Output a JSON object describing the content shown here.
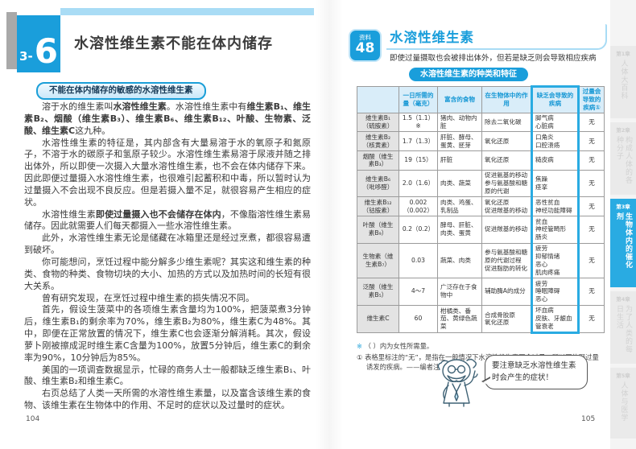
{
  "left_page": {
    "section_prefix": "3-",
    "section_number": "6",
    "title": "水溶性维生素不能在体内储存",
    "subtitle_bar": "不能在体内储存的敏感的水溶性维生素",
    "paragraphs": [
      [
        {
          "t": "溶于水的维生素叫",
          "b": false
        },
        {
          "t": "水溶性维生素",
          "b": true
        },
        {
          "t": "。水溶性维生素中有",
          "b": false
        },
        {
          "t": "维生素B₁、维生素B₂、烟酸（维生素B₃）、维生素B₆、维生素B₁₂、叶酸、生物素、泛酸、维生素C",
          "b": true
        },
        {
          "t": "这九种。",
          "b": false
        }
      ],
      [
        {
          "t": "水溶性维生素的特征是，其内部含有大量易溶于水的氧原子和氮原子，不溶于水的碳原子和氢原子较少。水溶性维生素易溶于尿液并随之排出体外，所以即使一次摄入大量水溶性维生素，也不会在体内储存下来。因此即便过量摄入水溶性维生素，也很难引起蓄积和中毒，所以暂时认为过量摄入不会出现不良反应。但是若摄入量不足，就很容易产生相应的症状。",
          "b": false
        }
      ],
      [
        {
          "t": "水溶性维生素",
          "b": false
        },
        {
          "t": "即使过量摄入也不会储存在体内",
          "b": true
        },
        {
          "t": "，不像脂溶性维生素易储存。因此就需要人们每天都摄入一些水溶性维生素。",
          "b": false
        }
      ],
      [
        {
          "t": "此外，水溶性维生素无论是储藏在冰箱里还是经过烹煮，都很容易遭到破坏。",
          "b": false
        }
      ],
      [
        {
          "t": "你可能想问，烹饪过程中能分解多少维生素呢？其实这和维生素的种类、食物的种类、食物切块的大小、加热的方式以及加热时间的长短有很大关系。",
          "b": false
        }
      ],
      [
        {
          "t": "曾有研究发现，在烹饪过程中维生素的损失情况不同。",
          "b": false
        }
      ],
      [
        {
          "t": "首先，假设生菠菜中的各项维生素含量均为100%，把菠菜煮3分钟后，维生素B₁的剩余率为70%，维生素B₂为80%，维生素C为48%。其中，即便在正常放置的情况下，维生素C也会逐渐分解消耗。其次，假设萝卜刚被擦成泥时维生素C含量为100%，放置5分钟后，维生素C的剩余率为90%，10分钟后为85%。",
          "b": false
        }
      ],
      [
        {
          "t": "美国的一项调查数据显示，忙碌的商务人士一般都缺乏维生素B₁、叶酸、维生素B₂和维生素C。",
          "b": false
        }
      ],
      [
        {
          "t": "右页总结了人类一天所需的水溶性维生素量，以及富含该维生素的食物、该维生素在生物体中的作用、不足时的症状以及过量时的症状。",
          "b": false
        }
      ]
    ],
    "page_number": "104"
  },
  "right_page": {
    "badge_label": "资料",
    "badge_number": "48",
    "title": "水溶性维生素",
    "subtitle": "即使过量摄取也会被排出体外，但若是缺乏则会导致相应疾病",
    "table": {
      "title": "水溶性维生素的种类和特征",
      "headers": [
        "",
        "一日所需的量（毫克）",
        "富含的食物",
        "在生物体中的作用",
        "缺乏会导致的疾病",
        "过量会导致的疾病①"
      ],
      "rows": [
        {
          "name": "维生素B₁\n（硫胺素）",
          "amount": "1.5（1.1）※",
          "food": "猪肉、动物内脏",
          "role": "除去二氧化碳",
          "deficiency": "脚气病\n心脏病",
          "excess": "无"
        },
        {
          "name": "维生素B₂\n（核黄素）",
          "amount": "1.7（1.3）",
          "food": "肝脏、酵母、蛋黄、胚芽",
          "role": "氧化还原",
          "deficiency": "口角炎\n口腔溃疡",
          "excess": "无"
        },
        {
          "name": "烟酸（维生素B₃）",
          "amount": "19（15）",
          "food": "肝脏",
          "role": "氧化还原",
          "deficiency": "糙皮病",
          "excess": "无"
        },
        {
          "name": "维生素B₆\n（吡哆醛）",
          "amount": "2.0（1.6）",
          "food": "肉类、蔬菜",
          "role": "促进氨基的移动\n参与氨基酸和糖原的代谢",
          "deficiency": "焦躁\n痉挛",
          "excess": "无"
        },
        {
          "name": "维生素B₁₂\n（钴胺素）",
          "amount": "0.002\n（0.002）",
          "food": "肉类、鸡蛋、乳制品",
          "role": "氧化还原\n促进羰基的移动",
          "deficiency": "恶性贫血\n神经功能障碍",
          "excess": "无"
        },
        {
          "name": "叶酸（维生素B₉）",
          "amount": "0.2（0.2）",
          "food": "酵母、肝脏、肉类、蛋黄",
          "role": "促进羰基的移动",
          "deficiency": "贫血\n神经管畸形\n肠炎",
          "excess": "无"
        },
        {
          "name": "生物素（维生素B₇）",
          "amount": "0.03",
          "food": "蔬菜、肉类",
          "role": "参与氨基酸和糖原的代谢过程\n促进脂肪的转化",
          "deficiency": "疲劳\n抑郁情绪\n恶心\n肌肉疼痛",
          "excess": "无"
        },
        {
          "name": "泛酸（维生素B₅）",
          "amount": "4～7",
          "food": "广泛存在于食物中",
          "role": "辅助酶A的成分",
          "deficiency": "疲劳\n睡眠障碍\n恶心",
          "excess": "无"
        },
        {
          "name": "维生素C",
          "amount": "60",
          "food": "柑橘类、番茄、黄绿色蔬菜",
          "role": "合成骨胶原\n氧化还原",
          "deficiency": "坏血病\n皮肤、牙龈血管衰老",
          "excess": "无"
        }
      ]
    },
    "notes": [
      {
        "marker": "※",
        "text": "（ ）内为女性所需量。"
      },
      {
        "marker": "①",
        "text": "表格里标注的“无”，是指在一般情况下水溶性维生素不会过量，所以不体现过量诱发的疾病。——编者注"
      }
    ],
    "speech_bubble": "要注意缺乏水溶性维生素时会产生的症状！",
    "page_number": "105"
  },
  "side_tabs": [
    {
      "chapter": "第1章",
      "label": "人体大百科",
      "active": false
    },
    {
      "chapter": "第2章",
      "label": "构成人体的各种分子",
      "active": false
    },
    {
      "chapter": "第3章",
      "label": "生物体内的催化剂",
      "active": true
    },
    {
      "chapter": "第4章",
      "label": "为了人类的每日生活",
      "active": false
    },
    {
      "chapter": "第5章",
      "label": "人体与医学",
      "active": false
    }
  ]
}
